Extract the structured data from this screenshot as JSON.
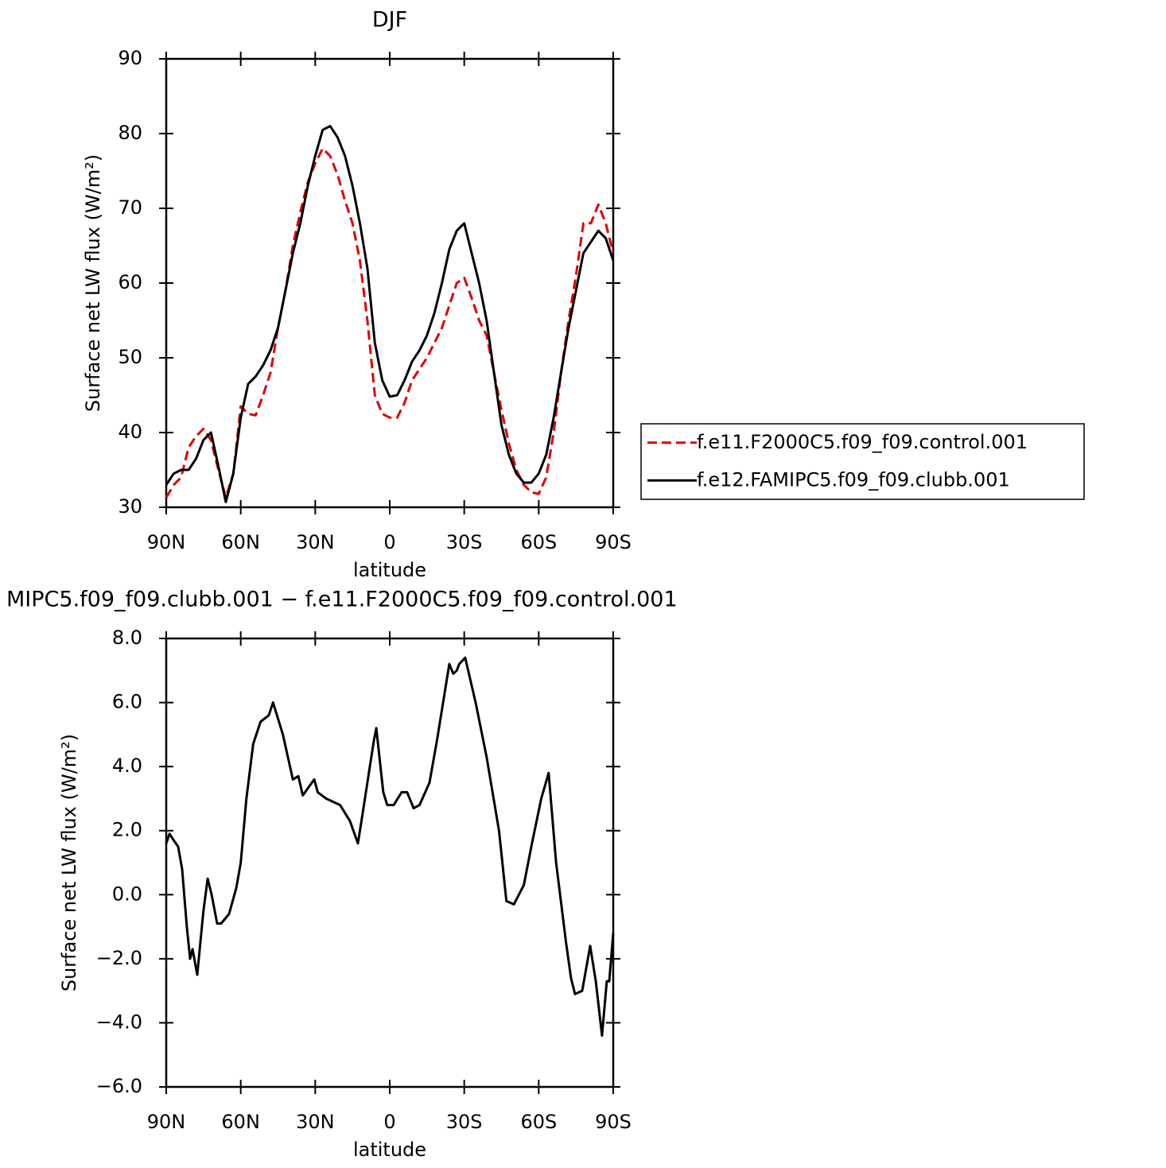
{
  "chart_data": [
    {
      "type": "line",
      "title": "DJF",
      "x_label": "latitude",
      "y_label": "Surface net LW flux (W/m²)",
      "xlim": [
        90,
        -90
      ],
      "xticks": [
        {
          "value": 90,
          "label": "90N"
        },
        {
          "value": 60,
          "label": "60N"
        },
        {
          "value": 30,
          "label": "30N"
        },
        0,
        {
          "value": -30,
          "label": "30S"
        },
        {
          "value": -60,
          "label": "60S"
        },
        {
          "value": -90,
          "label": "90S"
        }
      ],
      "ylim": [
        30,
        90
      ],
      "yticks": [
        30,
        40,
        50,
        60,
        70,
        80,
        90
      ],
      "legend": "right",
      "x": [
        90,
        87,
        84,
        81,
        78,
        75,
        72,
        69,
        66,
        63,
        60,
        57,
        54,
        51,
        48,
        45,
        42,
        39,
        36,
        33,
        30,
        27,
        24,
        21,
        18,
        15,
        12,
        9,
        6,
        3,
        0,
        -3,
        -6,
        -9,
        -12,
        -15,
        -18,
        -21,
        -24,
        -27,
        -30,
        -33,
        -36,
        -39,
        -42,
        -45,
        -48,
        -51,
        -54,
        -57,
        -60,
        -63,
        -66,
        -69,
        -72,
        -75,
        -78,
        -81,
        -84,
        -87,
        -90
      ],
      "series": [
        {
          "name": "f.e11.F2000C5.f09_f09.control.001",
          "color": "#e00000",
          "dash": true,
          "values": [
            31.3,
            33,
            34,
            38,
            39.5,
            40.5,
            39,
            35,
            31.3,
            34.5,
            43.5,
            42.5,
            42.3,
            45,
            48,
            54,
            59,
            65,
            69.5,
            73.5,
            76,
            78,
            77,
            74.5,
            71,
            68,
            63,
            55,
            45,
            42.5,
            42,
            42,
            44,
            47,
            48.5,
            50,
            52,
            54,
            57,
            60,
            60.7,
            58,
            55,
            53,
            48,
            43,
            38.5,
            35,
            33,
            32,
            31.8,
            34,
            40,
            48,
            55,
            61,
            68,
            68,
            70.5,
            68,
            64
          ]
        },
        {
          "name": "f.e12.FAMIPC5.f09_f09.clubb.001",
          "color": "#000000",
          "dash": false,
          "values": [
            33,
            34.5,
            35,
            35,
            36.5,
            39,
            40,
            35.5,
            30.7,
            34.5,
            42,
            46.5,
            47.5,
            49,
            51,
            54,
            59,
            64,
            68,
            73,
            77,
            80.5,
            81,
            79.5,
            77,
            73,
            68,
            62,
            52,
            47,
            44.8,
            45,
            47,
            49.5,
            51,
            53,
            56,
            60,
            64.5,
            67,
            68,
            64,
            60,
            55,
            48,
            41,
            37,
            34.5,
            33.3,
            33.3,
            34.5,
            37,
            42,
            48,
            54,
            59,
            64,
            65.5,
            67,
            66,
            63
          ]
        }
      ]
    },
    {
      "type": "line",
      "title": "MIPC5.f09_f09.clubb.001 − f.e11.F2000C5.f09_f09.control.001",
      "x_label": "latitude",
      "y_label": "Surface net LW flux (W/m²)",
      "xlim": [
        90,
        -90
      ],
      "xticks": [
        {
          "value": 90,
          "label": "90N"
        },
        {
          "value": 60,
          "label": "60N"
        },
        {
          "value": 30,
          "label": "30N"
        },
        0,
        {
          "value": -30,
          "label": "30S"
        },
        {
          "value": -60,
          "label": "60S"
        },
        {
          "value": -90,
          "label": "90S"
        }
      ],
      "ylim": [
        -6,
        8
      ],
      "yticks": [
        {
          "value": -6,
          "label": "−6.0"
        },
        {
          "value": -4,
          "label": "−4.0"
        },
        {
          "value": -2,
          "label": "−2.0"
        },
        {
          "value": 0,
          "label": "0.0"
        },
        {
          "value": 2,
          "label": "2.0"
        },
        {
          "value": 4,
          "label": "4.0"
        },
        {
          "value": 6,
          "label": "6.0"
        },
        {
          "value": 8,
          "label": "8.0"
        }
      ],
      "x": [
        90,
        88.7,
        87,
        85.2,
        83.6,
        81.7,
        80.4,
        79.4,
        77.5,
        75,
        73.3,
        71.7,
        69.5,
        67.9,
        64.7,
        61.8,
        60,
        57.7,
        55,
        52,
        48.7,
        47,
        43,
        39,
        36.8,
        35,
        30.4,
        29,
        25.6,
        20,
        16,
        12.8,
        11,
        9,
        6.4,
        5.4,
        2.6,
        1,
        -1.6,
        -4.8,
        -7,
        -9.6,
        -12,
        -16,
        -19,
        -21.5,
        -24,
        -25.6,
        -27,
        -28,
        -30.4,
        -34.6,
        -39,
        -44,
        -47,
        -50,
        -54,
        -57,
        -61,
        -64,
        -67,
        -71,
        -73,
        -74.6,
        -77.5,
        -80.7,
        -83,
        -85.5,
        -87.4,
        -88.4,
        -90
      ],
      "series": [
        {
          "color": "#000000",
          "dash": false,
          "values": [
            1.6,
            1.9,
            1.7,
            1.5,
            0.8,
            -1,
            -2,
            -1.7,
            -2.5,
            -0.5,
            0.5,
            0,
            -0.9,
            -0.9,
            -0.6,
            0.2,
            1,
            3,
            4.7,
            5.4,
            5.6,
            6,
            5,
            3.6,
            3.7,
            3.1,
            3.6,
            3.2,
            3,
            2.8,
            2.3,
            1.6,
            2.5,
            3.5,
            4.8,
            5.2,
            3.2,
            2.8,
            2.8,
            3.2,
            3.2,
            2.7,
            2.8,
            3.5,
            4.8,
            6,
            7.2,
            6.9,
            7,
            7.2,
            7.4,
            6,
            4.3,
            2,
            -0.2,
            -0.3,
            0.3,
            1.5,
            3,
            3.8,
            1,
            -1.5,
            -2.6,
            -3.1,
            -3,
            -1.6,
            -2.7,
            -4.4,
            -2.7,
            -2.7,
            -1.2
          ]
        }
      ]
    }
  ]
}
